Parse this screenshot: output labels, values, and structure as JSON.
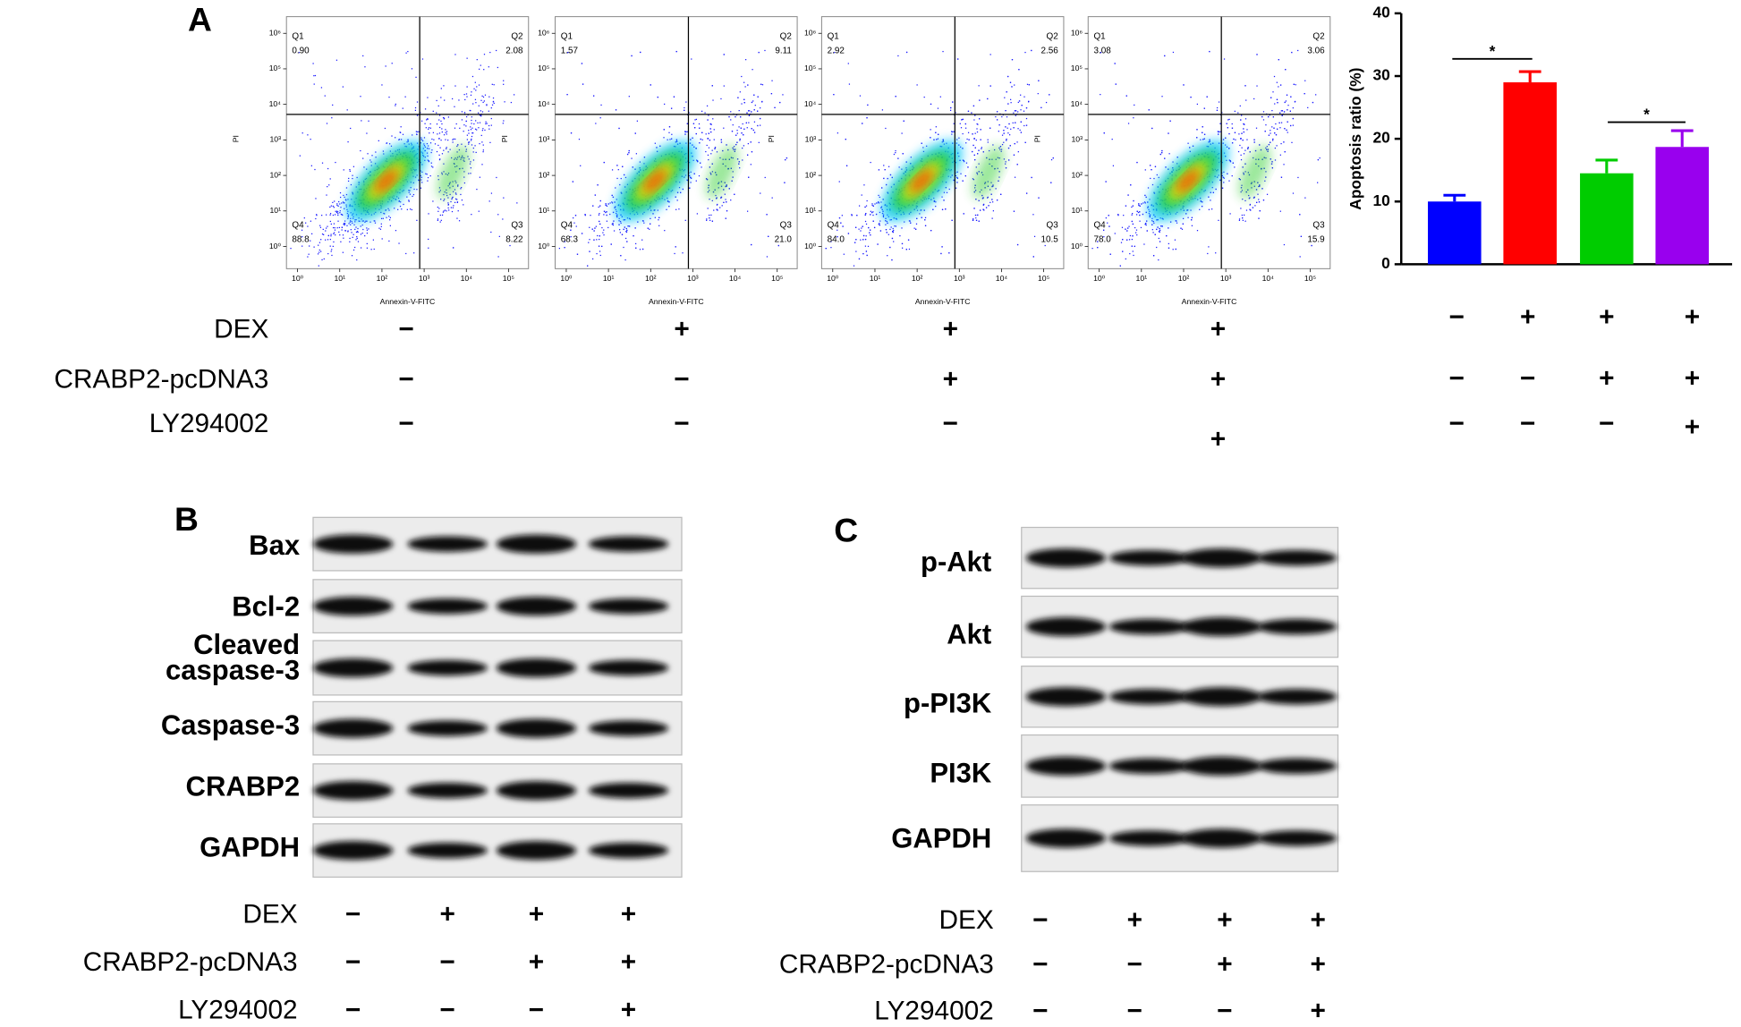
{
  "panel_a": {
    "label": "A",
    "x_axis_label": "Annexin-V-FITC",
    "y_axis_label": "PI",
    "x_ticks": [
      "10⁰",
      "10¹",
      "10²",
      "10³",
      "10⁴",
      "10⁵"
    ],
    "y_ticks": [
      "10⁰",
      "10¹",
      "10²",
      "10³",
      "10⁴",
      "10⁵",
      "10⁶"
    ],
    "flow_plots": [
      {
        "quadrants": [
          {
            "name": "Q1",
            "value": "0.90"
          },
          {
            "name": "Q2",
            "value": "2.08"
          },
          {
            "name": "Q3",
            "value": "8.22"
          },
          {
            "name": "Q4",
            "value": "88.8"
          }
        ]
      },
      {
        "quadrants": [
          {
            "name": "Q1",
            "value": "1.57"
          },
          {
            "name": "Q2",
            "value": "9.11"
          },
          {
            "name": "Q3",
            "value": "21.0"
          },
          {
            "name": "Q4",
            "value": "68.3"
          }
        ]
      },
      {
        "quadrants": [
          {
            "name": "Q1",
            "value": "2.92"
          },
          {
            "name": "Q2",
            "value": "2.56"
          },
          {
            "name": "Q3",
            "value": "10.5"
          },
          {
            "name": "Q4",
            "value": "84.0"
          }
        ]
      },
      {
        "quadrants": [
          {
            "name": "Q1",
            "value": "3.08"
          },
          {
            "name": "Q2",
            "value": "3.06"
          },
          {
            "name": "Q3",
            "value": "15.9"
          },
          {
            "name": "Q4",
            "value": "78.0"
          }
        ]
      }
    ],
    "treatments": [
      {
        "name": "DEX",
        "signs": [
          "−",
          "+",
          "+",
          "+"
        ]
      },
      {
        "name": "CRABP2-pcDNA3",
        "signs": [
          "−",
          "−",
          "+",
          "+"
        ]
      },
      {
        "name": "LY294002",
        "signs": [
          "−",
          "−",
          "−",
          "+"
        ]
      }
    ]
  },
  "chart_data": {
    "type": "bar",
    "y_label": "Apoptosis ratio (%)",
    "values": [
      10,
      29,
      14.5,
      18.7
    ],
    "errors": [
      1,
      1.7,
      2.1,
      2.6
    ],
    "colors": [
      "#0000ff",
      "#ff0000",
      "#00cc00",
      "#9900ee"
    ],
    "ylim": [
      0,
      40
    ],
    "yticks": [
      0,
      10,
      20,
      30,
      40
    ],
    "significance": [
      "*",
      "*"
    ],
    "treatment_signs": [
      [
        "−",
        "+",
        "+",
        "+"
      ],
      [
        "−",
        "−",
        "+",
        "+"
      ],
      [
        "−",
        "−",
        "−",
        "+"
      ]
    ]
  },
  "panel_b": {
    "label": "B",
    "rows": [
      [
        "Bax"
      ],
      [
        "Bcl-2"
      ],
      [
        "Cleaved",
        "caspase-3"
      ],
      [
        "Caspase-3"
      ],
      [
        "CRABP2"
      ],
      [
        "GAPDH"
      ]
    ],
    "treatments": [
      {
        "name": "DEX",
        "signs": [
          "−",
          "+",
          "+",
          "+"
        ]
      },
      {
        "name": "CRABP2-pcDNA3",
        "signs": [
          "−",
          "−",
          "+",
          "+"
        ]
      },
      {
        "name": "LY294002",
        "signs": [
          "−",
          "−",
          "−",
          "+"
        ]
      }
    ]
  },
  "panel_c": {
    "label": "C",
    "rows": [
      [
        "p-Akt"
      ],
      [
        "Akt"
      ],
      [
        "p-PI3K"
      ],
      [
        "PI3K"
      ],
      [
        "GAPDH"
      ]
    ],
    "treatments": [
      {
        "name": "DEX",
        "signs": [
          "−",
          "+",
          "+",
          "+"
        ]
      },
      {
        "name": "CRABP2-pcDNA3",
        "signs": [
          "−",
          "−",
          "+",
          "+"
        ]
      },
      {
        "name": "LY294002",
        "signs": [
          "−",
          "−",
          "−",
          "+"
        ]
      }
    ]
  }
}
